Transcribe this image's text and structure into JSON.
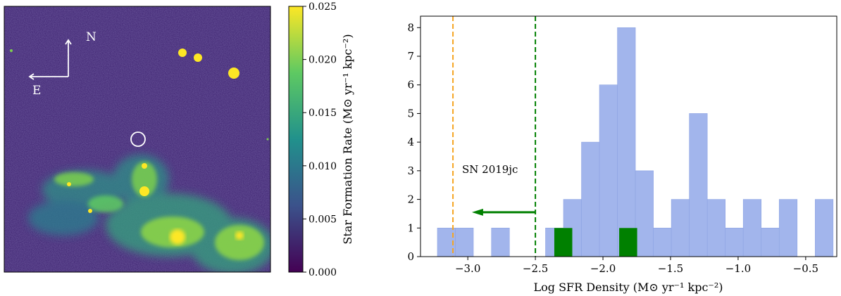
{
  "left_panel": {
    "compass": {
      "north": "N",
      "east": "E"
    },
    "colorbar": {
      "label": "Star Formation Rate (M⊙ yr⁻¹ kpc⁻²)",
      "ticks": [
        "0.000",
        "0.005",
        "0.010",
        "0.015",
        "0.020",
        "0.025"
      ],
      "tick_values": [
        0,
        0.005,
        0.01,
        0.015,
        0.02,
        0.025
      ],
      "colormap": [
        "#440154",
        "#3b528b",
        "#21918c",
        "#5ec962",
        "#fde725"
      ]
    },
    "map_colors": {
      "background": "#3b1f6e",
      "bright": "#fde725",
      "mid": "#7ccf4e",
      "marker": "#ffffff"
    }
  },
  "chart_data": {
    "type": "bar",
    "xlabel": "Log SFR Density (M⊙ yr⁻¹ kpc⁻²)",
    "ylabel": "",
    "xlim": [
      -3.35,
      -0.27
    ],
    "ylim": [
      0,
      8.4
    ],
    "xticks": [
      -3.0,
      -2.5,
      -2.0,
      -1.5,
      -1.0,
      -0.5
    ],
    "xtick_labels": [
      "−3.0",
      "−2.5",
      "−2.0",
      "−1.5",
      "−1.0",
      "−0.5"
    ],
    "yticks": [
      0,
      1,
      2,
      3,
      4,
      5,
      6,
      7,
      8
    ],
    "ytick_labels": [
      "0",
      "1",
      "2",
      "3",
      "4",
      "5",
      "6",
      "7",
      "8"
    ],
    "bin_width": 0.133,
    "series": [
      {
        "color": "#a2b5ec",
        "bins": [
          {
            "x0": -3.225,
            "count": 1
          },
          {
            "x0": -3.092,
            "count": 1
          },
          {
            "x0": -2.825,
            "count": 1
          },
          {
            "x0": -2.425,
            "count": 1
          },
          {
            "x0": -2.292,
            "count": 1
          },
          {
            "x0": -2.292,
            "count": 2
          },
          {
            "x0": -2.159,
            "count": 4
          },
          {
            "x0": -2.026,
            "count": 6
          },
          {
            "x0": -1.893,
            "count": 8
          },
          {
            "x0": -1.76,
            "count": 3
          },
          {
            "x0": -1.627,
            "count": 1
          },
          {
            "x0": -1.494,
            "count": 2
          },
          {
            "x0": -1.361,
            "count": 5
          },
          {
            "x0": -1.228,
            "count": 2
          },
          {
            "x0": -1.095,
            "count": 1
          },
          {
            "x0": -0.962,
            "count": 2
          },
          {
            "x0": -0.829,
            "count": 1
          },
          {
            "x0": -0.696,
            "count": 2
          },
          {
            "x0": -0.43,
            "count": 2
          }
        ]
      },
      {
        "color": "#008000",
        "bins": [
          {
            "x0": -2.36,
            "count": 1
          },
          {
            "x0": -1.88,
            "count": 1
          }
        ]
      }
    ],
    "vlines": [
      {
        "x": -3.11,
        "color": "#f5a623",
        "style": "dashed"
      },
      {
        "x": -2.5,
        "color": "#008000",
        "style": "dashed"
      }
    ],
    "arrow": {
      "from_x": -2.5,
      "to_x": -2.97,
      "y": 1.55,
      "color": "#008000"
    },
    "annotations": [
      {
        "text": "SN 2019jc",
        "x": -3.06,
        "y": 3.05
      }
    ]
  }
}
